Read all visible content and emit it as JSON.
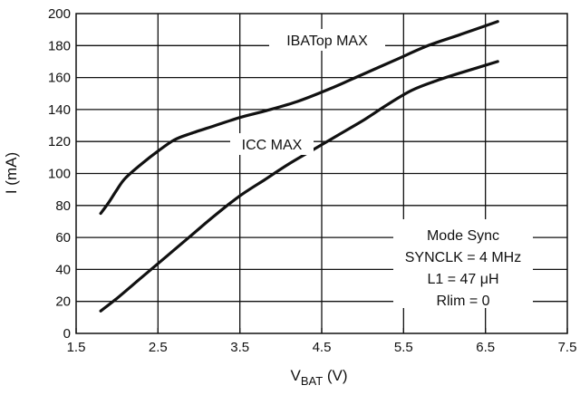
{
  "chart_data": {
    "type": "line",
    "xlabel": {
      "main": "V",
      "sub": "BAT",
      "unit": " (V)"
    },
    "ylabel": "I (mA)",
    "xlim": [
      1.5,
      7.5
    ],
    "ylim": [
      0,
      200
    ],
    "x_ticks": [
      1.5,
      2.5,
      3.5,
      4.5,
      5.5,
      6.5,
      7.5
    ],
    "x_tick_labels": [
      "1.5",
      "2.5",
      "3.5",
      "4.5",
      "5.5",
      "6.5",
      "7.5"
    ],
    "y_ticks": [
      0,
      20,
      40,
      60,
      80,
      100,
      120,
      140,
      160,
      180,
      200
    ],
    "y_tick_labels": [
      "0",
      "20",
      "40",
      "60",
      "80",
      "100",
      "120",
      "140",
      "160",
      "180",
      "200"
    ],
    "grid": true,
    "series": [
      {
        "name": "IBATop MAX",
        "x": [
          1.8,
          1.9,
          2.0,
          2.1,
          2.3,
          2.5,
          2.7,
          2.9,
          3.2,
          3.5,
          3.8,
          4.2,
          4.6,
          5.0,
          5.4,
          5.8,
          6.2,
          6.65
        ],
        "y": [
          75,
          82,
          90,
          97,
          106,
          114,
          121,
          125,
          130,
          135,
          139,
          145,
          153,
          162,
          171,
          180,
          187,
          195
        ]
      },
      {
        "name": "ICC MAX",
        "x": [
          1.8,
          2.0,
          2.3,
          2.6,
          2.9,
          3.2,
          3.5,
          3.8,
          4.1,
          4.4,
          4.7,
          5.0,
          5.3,
          5.6,
          5.9,
          6.2,
          6.65
        ],
        "y": [
          14,
          22,
          35,
          48,
          61,
          74,
          86,
          96,
          106,
          115,
          124,
          133,
          143,
          152,
          158,
          163,
          170
        ]
      }
    ],
    "annotations": [
      "Mode Sync",
      "SYNCLK = 4 MHz",
      "L1 = 47 μH",
      "Rlim = 0"
    ]
  }
}
